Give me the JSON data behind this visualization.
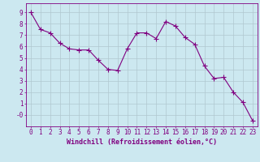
{
  "x": [
    0,
    1,
    2,
    3,
    4,
    5,
    6,
    7,
    8,
    9,
    10,
    11,
    12,
    13,
    14,
    15,
    16,
    17,
    18,
    19,
    20,
    21,
    22,
    23
  ],
  "y": [
    9.0,
    7.5,
    7.2,
    6.3,
    5.8,
    5.7,
    5.7,
    4.8,
    4.0,
    3.9,
    5.8,
    7.2,
    7.2,
    6.7,
    8.2,
    7.8,
    6.8,
    6.2,
    4.3,
    3.2,
    3.3,
    2.0,
    1.1,
    -0.5
  ],
  "line_color": "#800080",
  "marker": "D",
  "marker_size": 2.0,
  "bg_color": "#cce8f0",
  "grid_color": "#b0c8d0",
  "ylim": [
    -1.0,
    9.8
  ],
  "xlim": [
    -0.5,
    23.5
  ],
  "yticks": [
    0,
    1,
    2,
    3,
    4,
    5,
    6,
    7,
    8,
    9
  ],
  "ytick_labels": [
    "-0",
    "1",
    "2",
    "3",
    "4",
    "5",
    "6",
    "7",
    "8",
    "9"
  ],
  "xticks": [
    0,
    1,
    2,
    3,
    4,
    5,
    6,
    7,
    8,
    9,
    10,
    11,
    12,
    13,
    14,
    15,
    16,
    17,
    18,
    19,
    20,
    21,
    22,
    23
  ],
  "tick_label_fontsize": 5.5,
  "xlabel": "Windchill (Refroidissement éolien,°C)",
  "xlabel_fontsize": 6.0,
  "line_width": 0.8,
  "axis_color": "#800080"
}
